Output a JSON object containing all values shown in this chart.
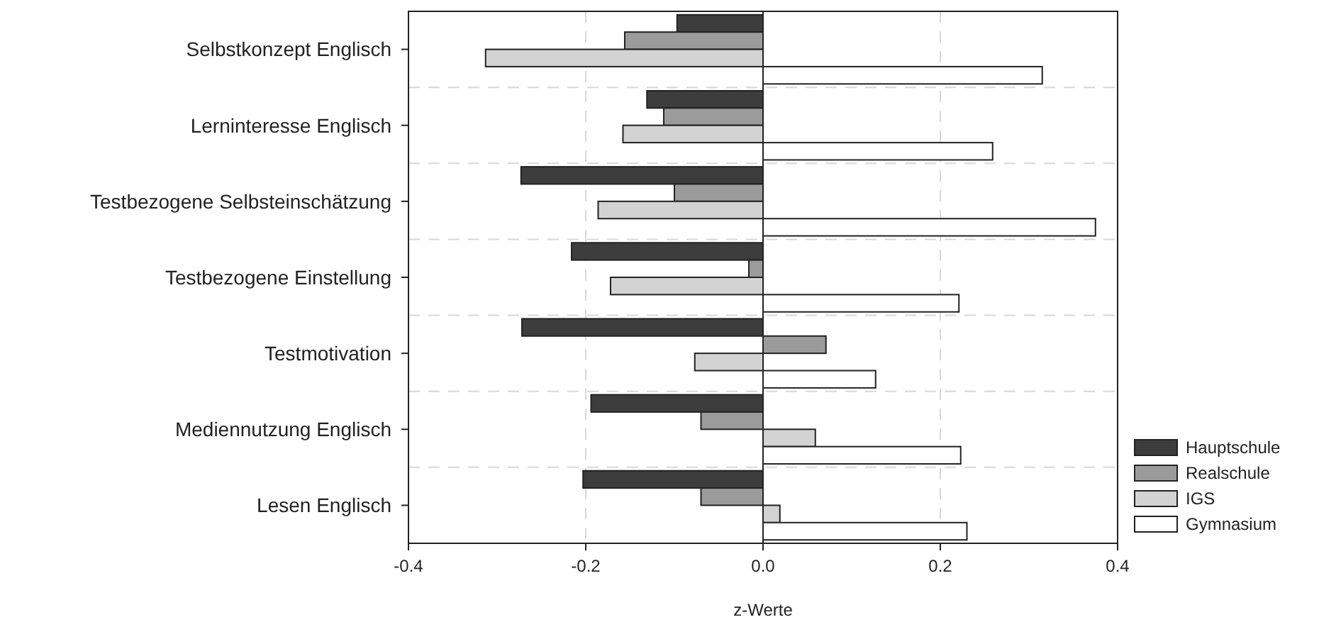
{
  "chart_data": {
    "type": "bar",
    "orientation": "horizontal",
    "xlabel": "z-Werte",
    "categories": [
      "Selbstkonzept Englisch",
      "Lerninteresse Englisch",
      "Testbezogene Selbsteinschätzung",
      "Testbezogene Einstellung",
      "Testmotivation",
      "Mediennutzung Englisch",
      "Lesen Englisch"
    ],
    "series": [
      {
        "name": "Hauptschule",
        "color": "#3d3d3d",
        "values": [
          -0.097,
          -0.131,
          -0.273,
          -0.216,
          -0.272,
          -0.194,
          -0.203
        ]
      },
      {
        "name": "Realschule",
        "color": "#9b9b9b",
        "values": [
          -0.156,
          -0.112,
          -0.1,
          -0.016,
          0.071,
          -0.07,
          -0.07
        ]
      },
      {
        "name": "IGS",
        "color": "#d3d3d3",
        "values": [
          -0.313,
          -0.158,
          -0.186,
          -0.172,
          -0.077,
          0.059,
          0.019
        ]
      },
      {
        "name": "Gymnasium",
        "color": "#ffffff",
        "values": [
          0.315,
          0.259,
          0.375,
          0.221,
          0.127,
          0.223,
          0.23
        ]
      }
    ],
    "xlim": [
      -0.4,
      0.4
    ],
    "xticks": [
      {
        "value": -0.4,
        "label": "-0.4"
      },
      {
        "value": -0.2,
        "label": "-0.2"
      },
      {
        "value": 0,
        "label": "0.0"
      },
      {
        "value": 0.2,
        "label": "0.2"
      },
      {
        "value": 0.4,
        "label": "0.4"
      }
    ],
    "grid": true,
    "legend": "bottom right"
  }
}
